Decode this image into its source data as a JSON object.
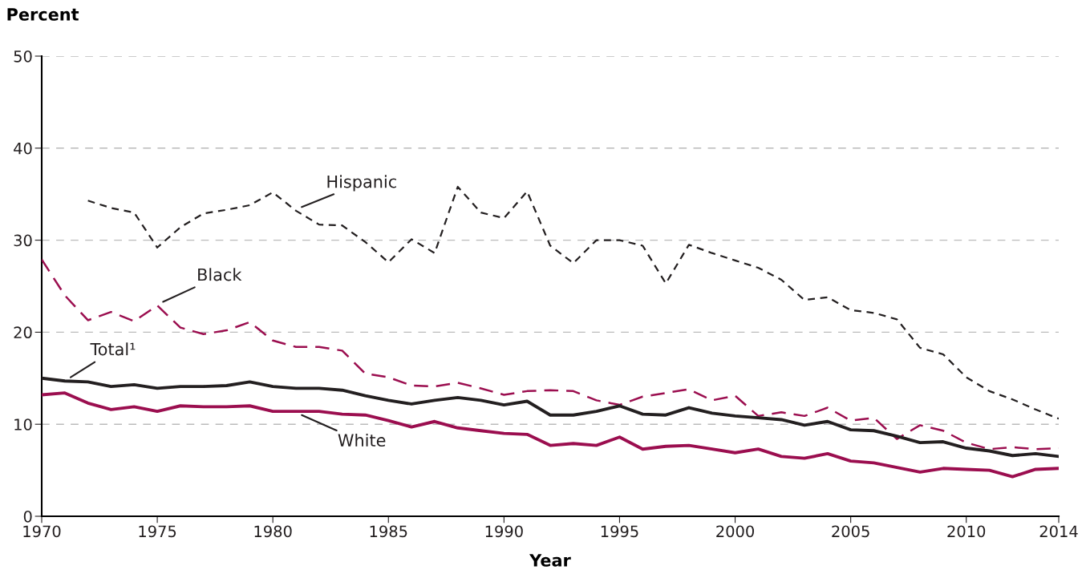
{
  "chart_data": {
    "type": "line",
    "xlabel": "Year",
    "ylabel": "Percent",
    "xlim": [
      1970,
      2014
    ],
    "xticks": [
      1970,
      1975,
      1980,
      1985,
      1990,
      1995,
      2000,
      2005,
      2010,
      2014
    ],
    "ylim": [
      0,
      50
    ],
    "yticks": [
      0,
      10,
      20,
      30,
      40,
      50
    ],
    "grid": "y",
    "legend": false,
    "marker": "none",
    "series": [
      {
        "name": "Hispanic",
        "color": "#231f20",
        "line_style": "dotted",
        "x": [
          1972,
          1973,
          1974,
          1975,
          1976,
          1977,
          1978,
          1979,
          1980,
          1981,
          1982,
          1983,
          1984,
          1985,
          1986,
          1987,
          1988,
          1989,
          1990,
          1991,
          1992,
          1993,
          1994,
          1995,
          1996,
          1997,
          1998,
          1999,
          2000,
          2001,
          2002,
          2003,
          2004,
          2005,
          2006,
          2007,
          2008,
          2009,
          2010,
          2011,
          2012,
          2013,
          2014
        ],
        "values": [
          34.3,
          33.5,
          33.0,
          29.2,
          31.4,
          32.9,
          33.3,
          33.8,
          35.2,
          33.2,
          31.7,
          31.6,
          29.8,
          27.6,
          30.1,
          28.6,
          35.8,
          33.0,
          32.4,
          35.3,
          29.4,
          27.5,
          30.0,
          30.0,
          29.4,
          25.3,
          29.5,
          28.6,
          27.8,
          27.0,
          25.7,
          23.5,
          23.8,
          22.4,
          22.1,
          21.4,
          18.3,
          17.6,
          15.1,
          13.6,
          12.7,
          11.6,
          10.6
        ]
      },
      {
        "name": "Black",
        "color": "#9b0e4f",
        "line_style": "dashed",
        "x": [
          1970,
          1971,
          1972,
          1973,
          1974,
          1975,
          1976,
          1977,
          1978,
          1979,
          1980,
          1981,
          1982,
          1983,
          1984,
          1985,
          1986,
          1987,
          1988,
          1989,
          1990,
          1991,
          1992,
          1993,
          1994,
          1995,
          1996,
          1997,
          1998,
          1999,
          2000,
          2001,
          2002,
          2003,
          2004,
          2005,
          2006,
          2007,
          2008,
          2009,
          2010,
          2011,
          2012,
          2013,
          2014
        ],
        "values": [
          27.9,
          24.0,
          21.3,
          22.2,
          21.2,
          22.9,
          20.5,
          19.8,
          20.2,
          21.1,
          19.1,
          18.4,
          18.4,
          18.0,
          15.5,
          15.1,
          14.2,
          14.1,
          14.5,
          13.9,
          13.2,
          13.6,
          13.7,
          13.6,
          12.6,
          12.1,
          13.0,
          13.4,
          13.8,
          12.6,
          13.1,
          10.9,
          11.3,
          10.9,
          11.8,
          10.4,
          10.7,
          8.4,
          9.9,
          9.3,
          8.0,
          7.3,
          7.5,
          7.3,
          7.4
        ]
      },
      {
        "name": "Total¹",
        "color": "#231f20",
        "line_style": "solid",
        "x": [
          1970,
          1971,
          1972,
          1973,
          1974,
          1975,
          1976,
          1977,
          1978,
          1979,
          1980,
          1981,
          1982,
          1983,
          1984,
          1985,
          1986,
          1987,
          1988,
          1989,
          1990,
          1991,
          1992,
          1993,
          1994,
          1995,
          1996,
          1997,
          1998,
          1999,
          2000,
          2001,
          2002,
          2003,
          2004,
          2005,
          2006,
          2007,
          2008,
          2009,
          2010,
          2011,
          2012,
          2013,
          2014
        ],
        "values": [
          15.0,
          14.7,
          14.6,
          14.1,
          14.3,
          13.9,
          14.1,
          14.1,
          14.2,
          14.6,
          14.1,
          13.9,
          13.9,
          13.7,
          13.1,
          12.6,
          12.2,
          12.6,
          12.9,
          12.6,
          12.1,
          12.5,
          11.0,
          11.0,
          11.4,
          12.0,
          11.1,
          11.0,
          11.8,
          11.2,
          10.9,
          10.7,
          10.5,
          9.9,
          10.3,
          9.4,
          9.3,
          8.7,
          8.0,
          8.1,
          7.4,
          7.1,
          6.6,
          6.8,
          6.5
        ]
      },
      {
        "name": "White",
        "color": "#9b0e4f",
        "line_style": "solid",
        "x": [
          1970,
          1971,
          1972,
          1973,
          1974,
          1975,
          1976,
          1977,
          1978,
          1979,
          1980,
          1981,
          1982,
          1983,
          1984,
          1985,
          1986,
          1987,
          1988,
          1989,
          1990,
          1991,
          1992,
          1993,
          1994,
          1995,
          1996,
          1997,
          1998,
          1999,
          2000,
          2001,
          2002,
          2003,
          2004,
          2005,
          2006,
          2007,
          2008,
          2009,
          2010,
          2011,
          2012,
          2013,
          2014
        ],
        "values": [
          13.2,
          13.4,
          12.3,
          11.6,
          11.9,
          11.4,
          12.0,
          11.9,
          11.9,
          12.0,
          11.4,
          11.4,
          11.4,
          11.1,
          11.0,
          10.4,
          9.7,
          10.3,
          9.6,
          9.3,
          9.0,
          8.9,
          7.7,
          7.9,
          7.7,
          8.6,
          7.3,
          7.6,
          7.7,
          7.3,
          6.9,
          7.3,
          6.5,
          6.3,
          6.8,
          6.0,
          5.8,
          5.3,
          4.8,
          5.2,
          5.1,
          5.0,
          4.3,
          5.1,
          5.2
        ]
      }
    ]
  }
}
